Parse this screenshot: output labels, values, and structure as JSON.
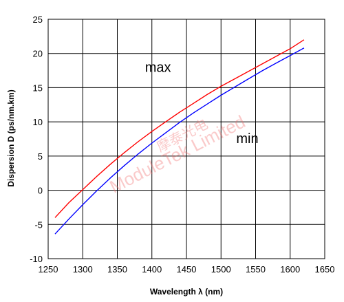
{
  "chart_data": {
    "type": "line",
    "xlabel": "Wavelength λ (nm)",
    "ylabel": "Dispersion D (ps/nm.km)",
    "xlim": [
      1250,
      1650
    ],
    "ylim": [
      -10,
      25
    ],
    "x_ticks": [
      1250,
      1300,
      1350,
      1400,
      1450,
      1500,
      1550,
      1600,
      1650
    ],
    "y_ticks": [
      -10,
      -5,
      0,
      5,
      10,
      15,
      20,
      25
    ],
    "grid": true,
    "series": [
      {
        "color": "#ff0000",
        "points": [
          [
            1260,
            -4.0
          ],
          [
            1280,
            -1.8
          ],
          [
            1300,
            0.1
          ],
          [
            1320,
            2.0
          ],
          [
            1340,
            3.8
          ],
          [
            1360,
            5.5
          ],
          [
            1380,
            7.1
          ],
          [
            1400,
            8.6
          ],
          [
            1420,
            10.0
          ],
          [
            1440,
            11.4
          ],
          [
            1460,
            12.7
          ],
          [
            1480,
            14.0
          ],
          [
            1500,
            15.2
          ],
          [
            1520,
            16.3
          ],
          [
            1540,
            17.4
          ],
          [
            1560,
            18.5
          ],
          [
            1580,
            19.6
          ],
          [
            1600,
            20.7
          ],
          [
            1620,
            22.0
          ]
        ]
      },
      {
        "color": "#0000ff",
        "points": [
          [
            1260,
            -6.4
          ],
          [
            1280,
            -4.2
          ],
          [
            1300,
            -2.1
          ],
          [
            1320,
            -0.1
          ],
          [
            1340,
            1.8
          ],
          [
            1360,
            3.6
          ],
          [
            1380,
            5.3
          ],
          [
            1400,
            6.9
          ],
          [
            1420,
            8.4
          ],
          [
            1440,
            9.9
          ],
          [
            1460,
            11.3
          ],
          [
            1480,
            12.6
          ],
          [
            1500,
            13.9
          ],
          [
            1520,
            15.1
          ],
          [
            1540,
            16.3
          ],
          [
            1560,
            17.5
          ],
          [
            1580,
            18.6
          ],
          [
            1600,
            19.7
          ],
          [
            1620,
            20.8
          ]
        ]
      }
    ],
    "annotations": [
      {
        "text": "max",
        "x": 1390,
        "y": 18
      },
      {
        "text": "min",
        "x": 1522,
        "y": 7.6
      }
    ],
    "watermark": {
      "line1": "摩泰光电",
      "line2": "ModuleTek Limited"
    }
  }
}
